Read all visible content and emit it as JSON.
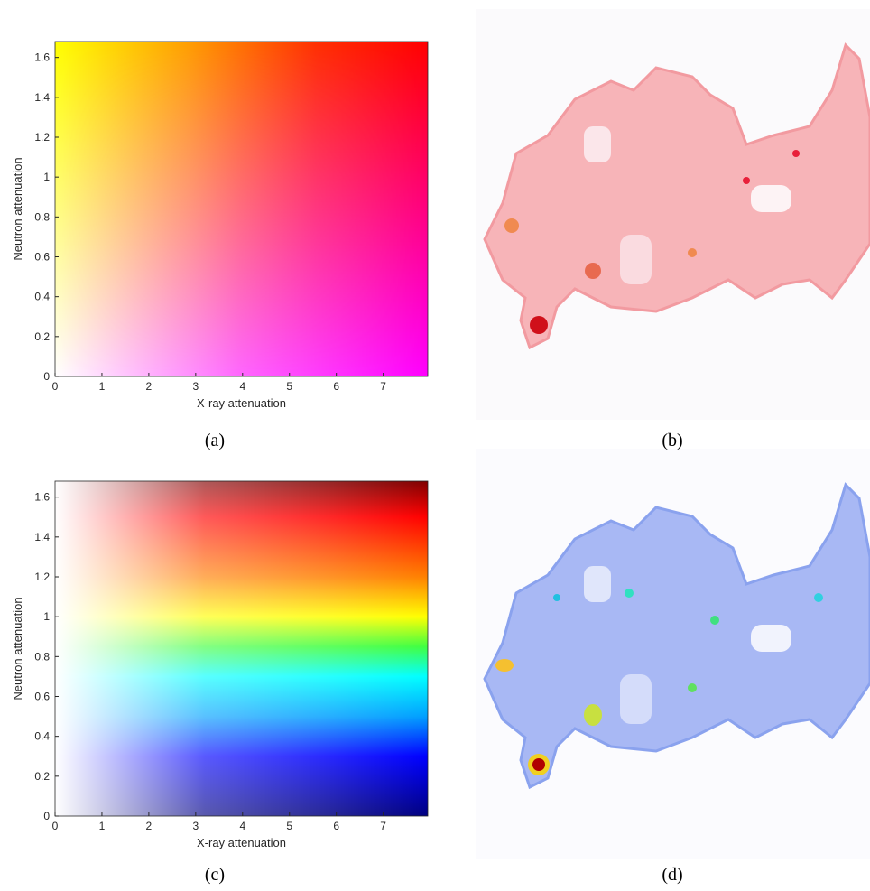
{
  "chart_data": [
    {
      "type": "colormap",
      "xlabel": "X-ray attenuation",
      "ylabel": "Neutron attenuation",
      "xlim": [
        0,
        7.95
      ],
      "ylim": [
        0,
        1.68
      ],
      "xticks": [
        0,
        1,
        2,
        3,
        4,
        5,
        6,
        7
      ],
      "yticks": [
        0,
        0.2,
        0.4,
        0.6,
        0.8,
        1,
        1.2,
        1.4,
        1.6
      ]
    },
    {
      "type": "colormap",
      "xlabel": "X-ray attenuation",
      "ylabel": "Neutron attenuation",
      "xlim": [
        0,
        7.95
      ],
      "ylim": [
        0,
        1.68
      ],
      "xticks": [
        0,
        1,
        2,
        3,
        4,
        5,
        6,
        7
      ],
      "yticks": [
        0,
        0.2,
        0.4,
        0.6,
        0.8,
        1,
        1.2,
        1.4,
        1.6
      ]
    }
  ],
  "captions": [
    "(a)",
    "(b)",
    "(c)",
    "(d)"
  ]
}
